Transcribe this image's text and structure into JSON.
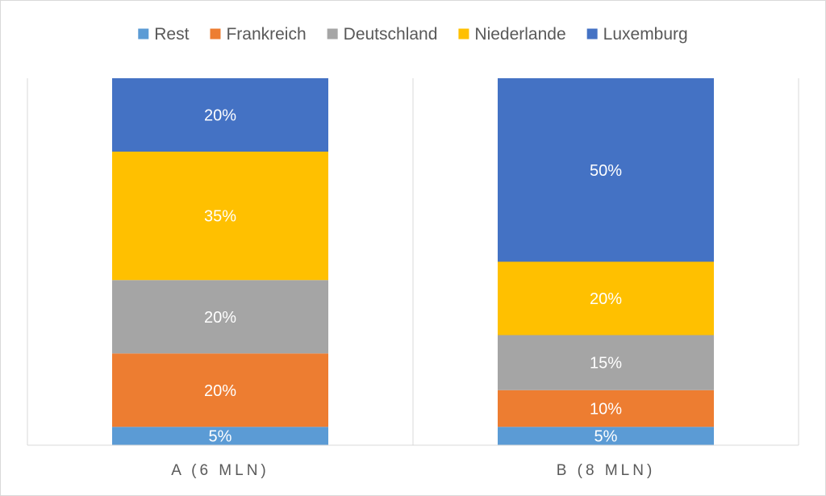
{
  "chart_data": {
    "type": "bar",
    "stacked": true,
    "percent_stacked": true,
    "categories": [
      "A (6 MLN)",
      "B (8 MLN)"
    ],
    "series": [
      {
        "name": "Rest",
        "values": [
          5,
          5
        ],
        "labels": [
          "5%",
          "5%"
        ],
        "color": "#5B9BD5"
      },
      {
        "name": "Frankreich",
        "values": [
          20,
          10
        ],
        "labels": [
          "20%",
          "10%"
        ],
        "color": "#ED7D31"
      },
      {
        "name": "Deutschland",
        "values": [
          20,
          15
        ],
        "labels": [
          "20%",
          "15%"
        ],
        "color": "#A5A5A5"
      },
      {
        "name": "Niederlande",
        "values": [
          35,
          20
        ],
        "labels": [
          "35%",
          "20%"
        ],
        "color": "#FFC000"
      },
      {
        "name": "Luxemburg",
        "values": [
          20,
          50
        ],
        "labels": [
          "20%",
          "50%"
        ],
        "color": "#4472C4"
      }
    ],
    "ylim": [
      0,
      100
    ],
    "legend_position": "top",
    "grid": "vertical category dividers",
    "title": "",
    "xlabel": "",
    "ylabel": ""
  }
}
